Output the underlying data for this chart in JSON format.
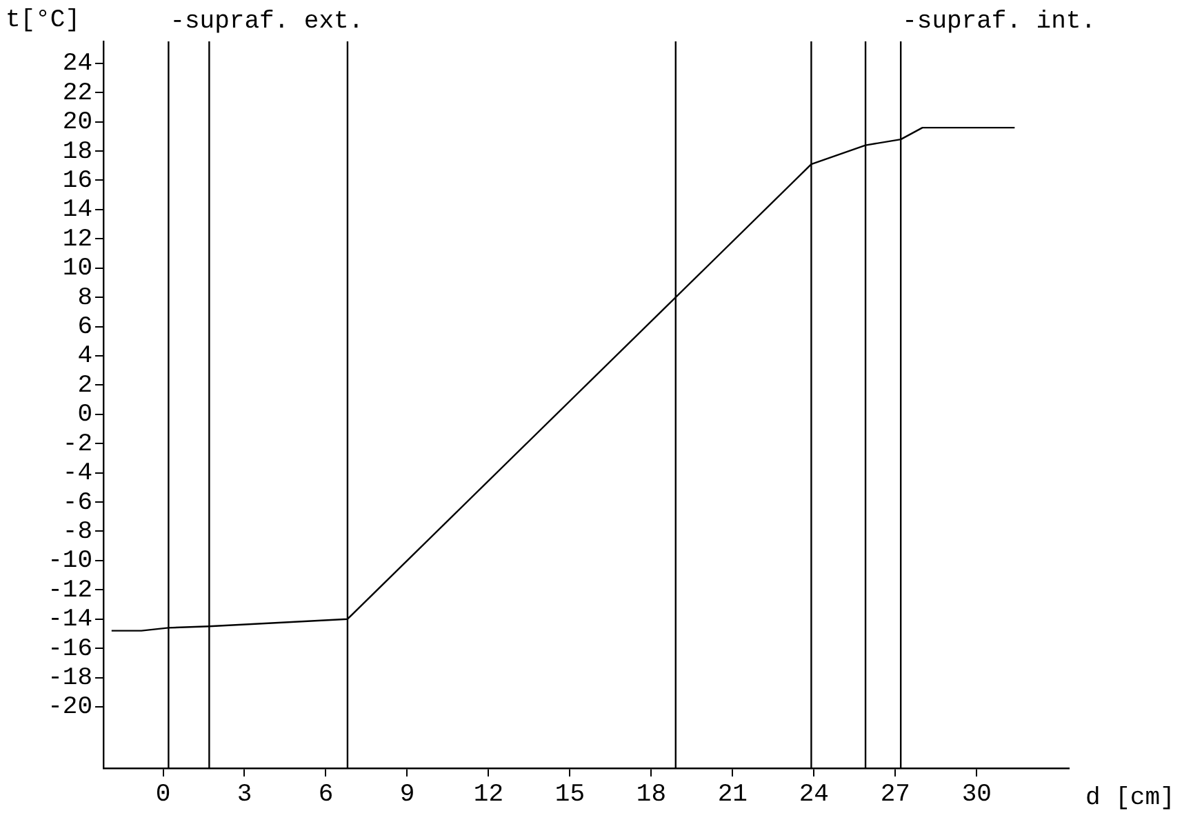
{
  "chart_data": {
    "type": "line",
    "xlabel": "d [cm]",
    "ylabel": "t[°C]",
    "x": [
      -1.9,
      -0.8,
      0.2,
      1.7,
      6.8,
      18.9,
      23.9,
      25.9,
      27.2,
      28.0,
      31.4
    ],
    "series": [
      {
        "color": "#000000",
        "values": [
          -14.8,
          -14.8,
          -14.6,
          -14.5,
          -14.0,
          8.0,
          17.1,
          18.4,
          18.8,
          19.6,
          19.6
        ]
      }
    ],
    "xlim": [
      -2.2,
      33.4
    ],
    "ylim": [
      -24.2,
      25.5
    ],
    "xticks": [
      0,
      3,
      6,
      9,
      12,
      15,
      18,
      21,
      24,
      27,
      30
    ],
    "yticks": [
      -20,
      -18,
      -16,
      -14,
      -12,
      -10,
      -8,
      -6,
      -4,
      -2,
      0,
      2,
      4,
      6,
      8,
      10,
      12,
      14,
      16,
      18,
      20,
      22,
      24
    ],
    "ref_lines": [
      {
        "axis": "x",
        "value": 0.2,
        "color": "#000000"
      },
      {
        "axis": "x",
        "value": 1.7,
        "color": "#000000"
      },
      {
        "axis": "x",
        "value": 6.8,
        "color": "#000000"
      },
      {
        "axis": "x",
        "value": 18.9,
        "color": "#000000"
      },
      {
        "axis": "x",
        "value": 23.9,
        "color": "#000000"
      },
      {
        "axis": "x",
        "value": 25.9,
        "color": "#000000"
      },
      {
        "axis": "x",
        "value": 27.2,
        "color": "#000000"
      }
    ],
    "annotations": [
      {
        "text": "-supraf. ext.",
        "x": 0.2,
        "y": 25
      },
      {
        "text": "-supraf. int.",
        "x": 27.2,
        "y": 25
      }
    ],
    "grid": false,
    "legend": false,
    "marker": "none",
    "line_style": "solid"
  }
}
